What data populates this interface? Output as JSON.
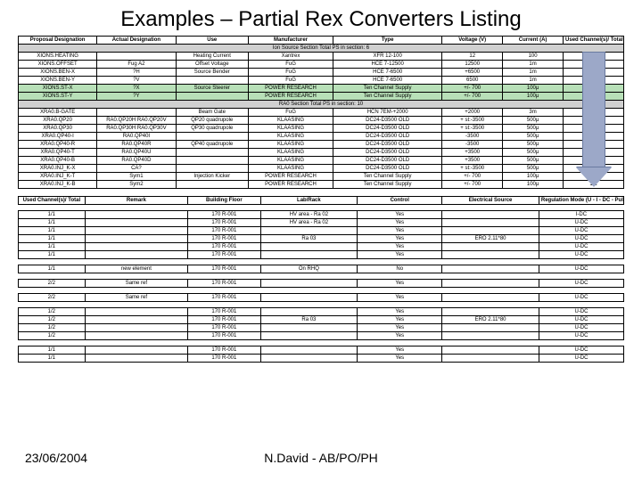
{
  "title": "Examples – Partial Rex Converters Listing",
  "footer": {
    "date": "23/06/2004",
    "author": "N.David - AB/PO/PH"
  },
  "table1": {
    "headers": [
      "Proposal Designation",
      "Actual Designation",
      "Use",
      "Manufacturer",
      "Type",
      "Voltage (V)",
      "Current (A)",
      "Used Channel(s)/ Total"
    ],
    "section1_label": "Ion Source Section          Total PS in section: 6",
    "section1_rows": [
      [
        "XIONS.HEATING",
        "",
        "Heating Current",
        "Xantrex",
        "XFR 12-100",
        "12",
        "100",
        "1/1"
      ],
      [
        "XIONS.OFFSET",
        "Fug A2",
        "Offset Voltage",
        "FuG",
        "HCE 7-12500",
        "12500",
        "1m",
        "1/1"
      ],
      [
        "XIONS.BEN-X",
        "?H",
        "Source Bender",
        "FuG",
        "HCE 7-6500",
        "+6500",
        "1m",
        "1/1"
      ],
      [
        "XIONS.BEN-Y",
        "?V",
        "",
        "FuG",
        "HCE 7-6500",
        "6500",
        "1m",
        "1/1"
      ],
      [
        "XIONS.ST-X",
        "?X",
        "Source Steerer",
        "POWER RESEARCH",
        "Ten Channel Supply",
        "+/- 700",
        "100μ",
        "1/1"
      ],
      [
        "XIONS.ST-Y",
        "?Y",
        "",
        "POWER RESEARCH",
        "Ten Channel Supply",
        "+/- 700",
        "100μ",
        "1/1"
      ]
    ],
    "section2_label": "RA0 Section          Total PS in section: 10",
    "section2_rows": [
      [
        "XRA0.B-GATE",
        "",
        "Beam Gate",
        "FuG",
        "HCN 7EM-+2000",
        "+2000",
        "3m",
        "1/1"
      ],
      [
        "XRA0.QP20",
        "RA0.QP20H RA0.QP20V",
        "QP20 quadrupole",
        "KLAASING",
        "DC24-D3500 OLD",
        "+ st:-3500",
        "500μ",
        "2/2"
      ],
      [
        "XRA0.QP30",
        "RA0.QP30H RA0.QP30V",
        "QP30 quadrupole",
        "KLAASING",
        "DC24-D3500 OLD",
        "+ st:-3500",
        "500μ",
        "2/2"
      ],
      [
        "XRA0.QP40-I",
        "RA0.QP40I",
        "",
        "KLAASING",
        "DC24-D3500 OLD",
        "-3500",
        "500μ",
        "1/2"
      ],
      [
        "XRA0.QP40-R",
        "RA0.QP40R",
        "QP40 quadrupole",
        "KLAASING",
        "DC24-D3500 OLD",
        "-3500",
        "500μ",
        "1/2"
      ],
      [
        "XRA0.QP40-T",
        "RA0.QP40U",
        "",
        "KLAASING",
        "DC24-D3500 OLD",
        "+3500",
        "500μ",
        "1/2"
      ],
      [
        "XRA0.QP40-B",
        "RA0.QP40D",
        "",
        "KLAASING",
        "DC24-D3500 OLD",
        "+3500",
        "500μ",
        "1/2"
      ],
      [
        "XRA0.INJ_K-X",
        "CA?",
        "",
        "KLAASING",
        "DC24-D3500 OLD",
        "+ st:-3500",
        "500μ",
        "2/2"
      ],
      [
        "XRA0.INJ_K-T",
        "Sym1",
        "Injection Kicker",
        "POWER RESEARCH",
        "Ten Channel Supply",
        "+/- 700",
        "100μ",
        "1/1"
      ],
      [
        "XRA0.INJ_K-B",
        "Sym2",
        "",
        "POWER RESEARCH",
        "Ten Channel Supply",
        "+/- 700",
        "100μ",
        "1/1"
      ]
    ]
  },
  "table2": {
    "headers": [
      "Used Channel(s)/ Total",
      "Remark",
      "Building Floor",
      "Lab/Rack",
      "Control",
      "Electrical Source",
      "Regulation Mode (U - I - DC - Pulses)"
    ],
    "block1": [
      [
        "1/1",
        "",
        "170 R-001",
        "HV area - Ra 02",
        "Yes",
        "",
        "I-DC"
      ],
      [
        "1/1",
        "",
        "170 R-001",
        "HV area - Ra 02",
        "Yes",
        "",
        "U-DC"
      ],
      [
        "1/1",
        "",
        "170 R-001",
        "",
        "Yes",
        "",
        "U-DC"
      ],
      [
        "1/1",
        "",
        "170 R-001",
        "Ra 03",
        "Yes",
        "ERO 2.11*80",
        "U-DC"
      ],
      [
        "1/1",
        "",
        "170 R-001",
        "",
        "Yes",
        "",
        "U-DC"
      ],
      [
        "1/1",
        "",
        "170 R-001",
        "",
        "Yes",
        "",
        "U-DC"
      ]
    ],
    "block2": [
      [
        "1/1",
        "new element",
        "170 R-001",
        "On RHQ",
        "No",
        "",
        "U-DC"
      ]
    ],
    "block3": [
      [
        "2/2",
        "Same ref",
        "170 R-001",
        "",
        "Yes",
        "",
        "U-DC"
      ]
    ],
    "block4": [
      [
        "2/2",
        "Same ref",
        "170 R-001",
        "",
        "Yes",
        "",
        "U-DC"
      ]
    ],
    "block5": [
      [
        "1/2",
        "",
        "170 R-001",
        "",
        "Yes",
        "",
        "U-DC"
      ],
      [
        "1/2",
        "",
        "170 R-001",
        "Ra 03",
        "Yes",
        "ERO 2.11*80",
        "U-DC"
      ],
      [
        "1/2",
        "",
        "170 R-001",
        "",
        "Yes",
        "",
        "U-DC"
      ],
      [
        "1/2",
        "",
        "170 R-001",
        "",
        "Yes",
        "",
        "U-DC"
      ]
    ],
    "block6": [
      [
        "1/1",
        "",
        "170 R-001",
        "",
        "Yes",
        "",
        "U-DC"
      ],
      [
        "1/1",
        "",
        "170 R-001",
        "",
        "Yes",
        "",
        "U-DC"
      ]
    ]
  }
}
